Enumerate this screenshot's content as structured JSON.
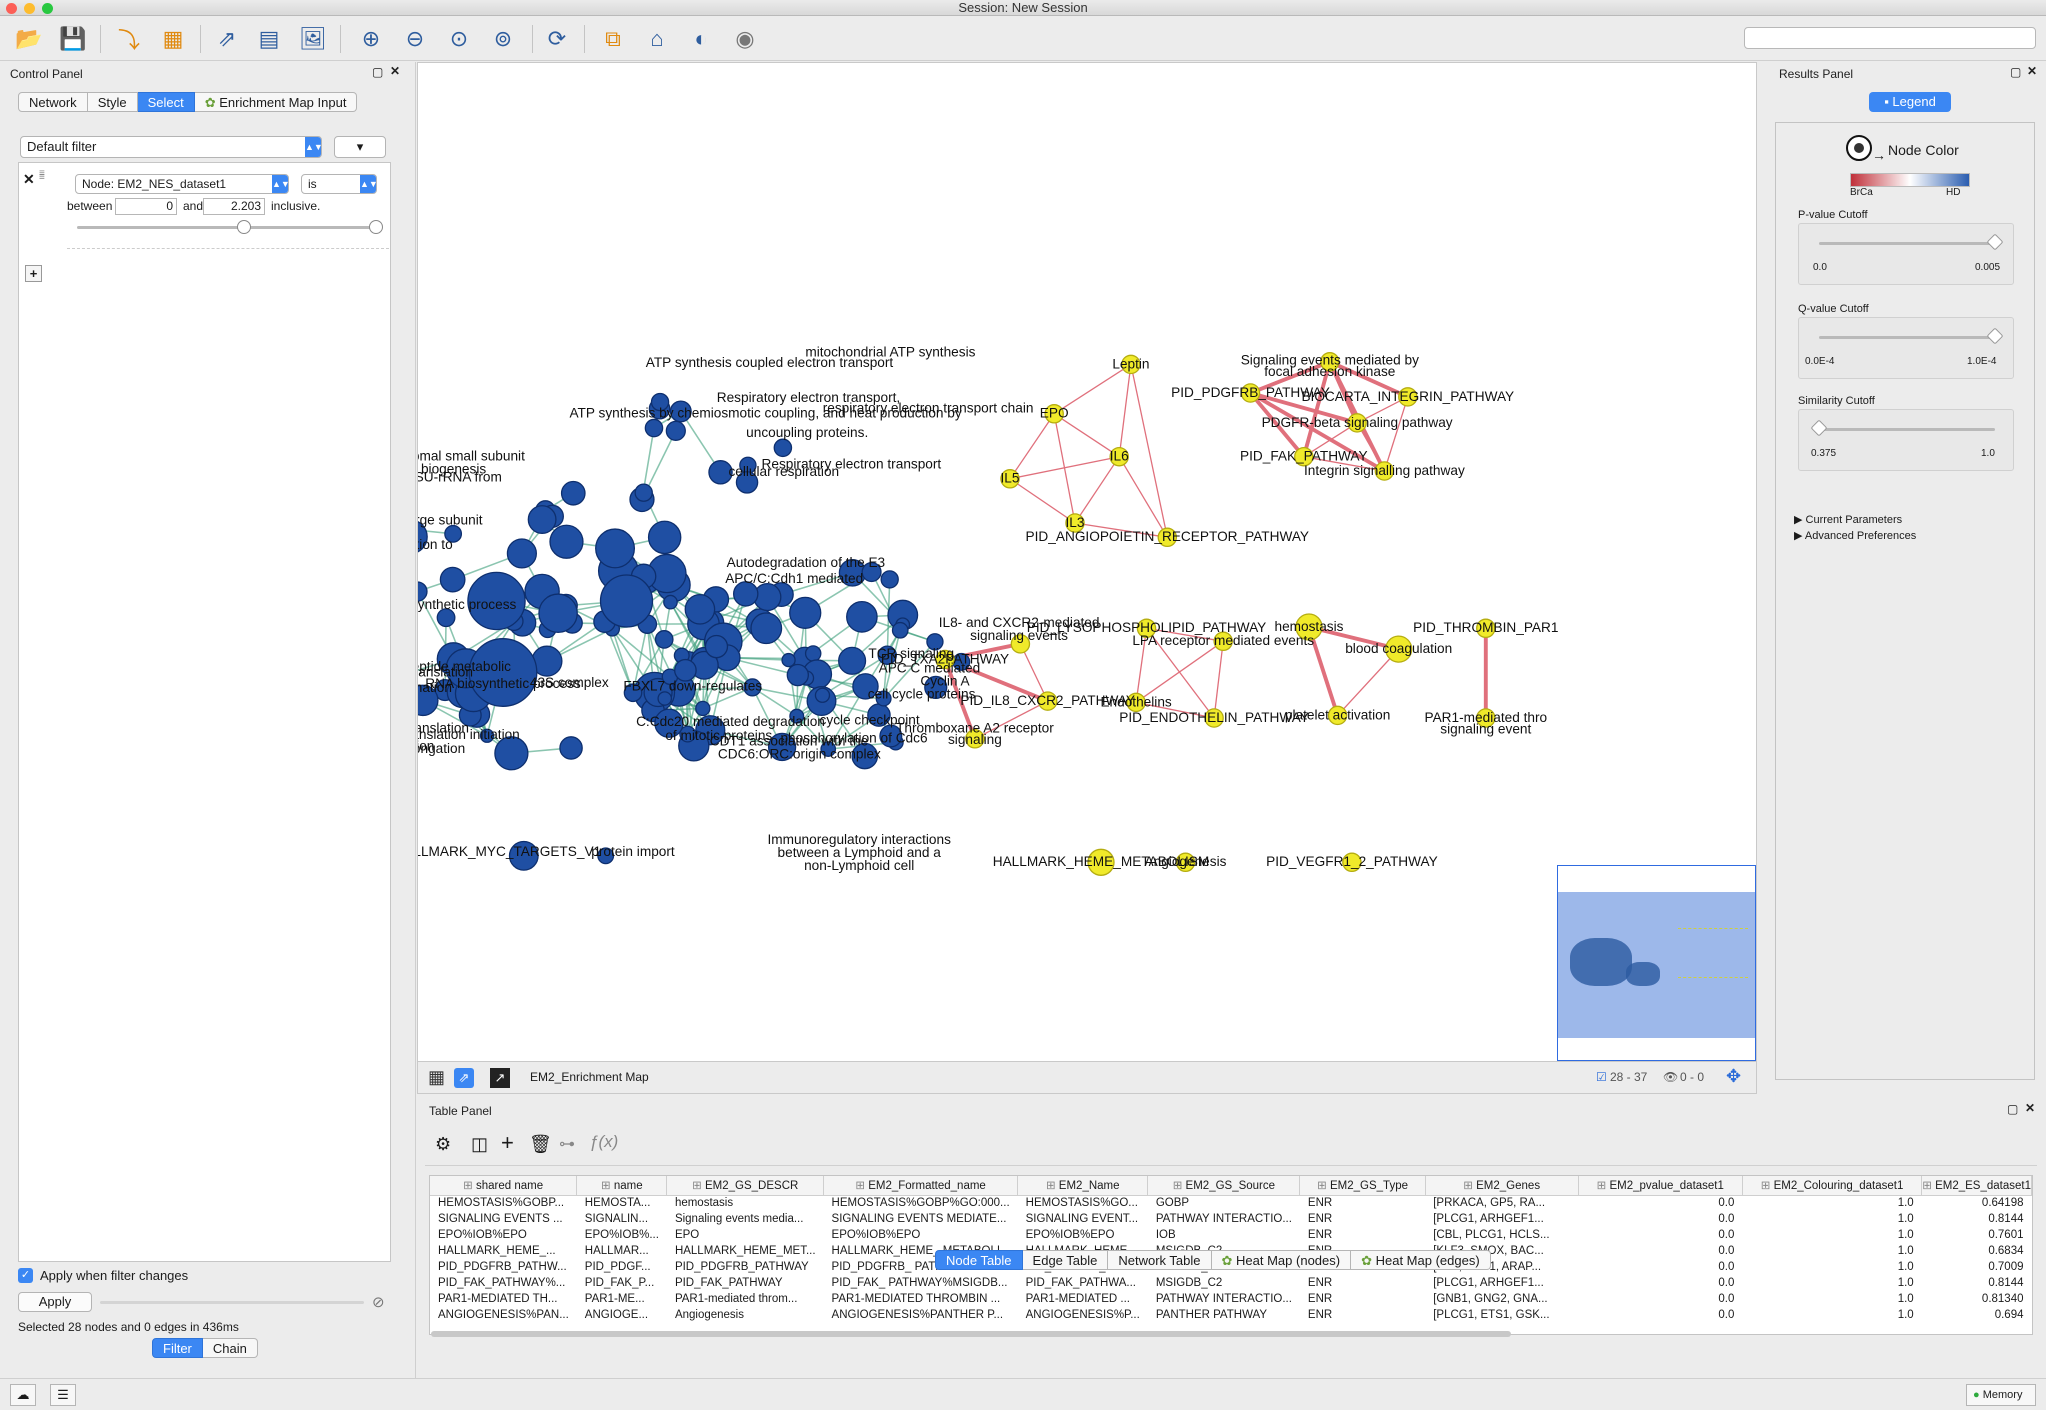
{
  "window": {
    "title": "Session: New Session"
  },
  "toolbar": {
    "search_placeholder": ""
  },
  "control_panel": {
    "title": "Control Panel",
    "tabs": [
      "Network",
      "Style",
      "Select",
      "Enrichment Map Input"
    ],
    "active_tab": "Select",
    "filter_select": "Default filter",
    "node_column": "Node: EM2_NES_dataset1",
    "operator": "is",
    "between_label": "between",
    "min_value": "0",
    "and_label": "and",
    "max_value": "2.203",
    "inclusive_label": "inclusive.",
    "apply_when_changes": "Apply when filter changes",
    "apply_label": "Apply",
    "selected_status": "Selected 28 nodes and 0 edges in 436ms",
    "bottom_tabs": [
      "Filter",
      "Chain"
    ]
  },
  "network": {
    "name": "EM2_Enrichment Map",
    "selection_counts": "28 - 37",
    "hidden_counts": "0 - 0",
    "labels": {
      "l1": "mitochondrial ATP synthesis",
      "l2": "ATP synthesis coupled electron transport",
      "l3": "Respiratory electron transport,",
      "l4": "ATP synthesis by chemiosmotic coupling, and heat production by",
      "l5": "uncoupling proteins.",
      "l6": "respiratory electron transport chain",
      "l7": "Respiratory electron transport",
      "l8": "cellular respiration",
      "l9": "ribosomal small subunit",
      "l10": "biogenesis",
      "l11": "maturation of SSU-rRNA from",
      "l12": "ribosomal large subunit",
      "l13": "protein localization to",
      "l14": "amide biosynthetic process",
      "l15": "Mitochondrial translation",
      "l16": "translational termination",
      "l17": "Mitochondrial translation",
      "l18": "elongation",
      "l19": "translational elongation",
      "l20": "translation initiation",
      "l21": "peptide metabolic",
      "l22": "RNA biosynthetic process",
      "l23": "43S complex",
      "l24": "Autodegradation of the E3",
      "l25": "APC/C:Cdh1 mediated",
      "l26": "FBXL7 down-regulates",
      "l27": "C:Cdc20 mediated degradation",
      "l28": "of mitotic proteins",
      "l29": "CDT1 association with the",
      "l30": "CDC6:ORC:origin complex",
      "l31": "TCR signaling",
      "l32": "APC C mediated",
      "l33": "Cyclin A",
      "l34": "cell cycle proteins",
      "l35": "cycle checkpoint",
      "l36": "phosphorylation of Cdc6",
      "l37": "HALLMARK_MYC_TARGETS_V1",
      "l38": "protein import",
      "l39": "Immunoregulatory interactions",
      "l40": "between a Lymphoid and a",
      "l41": "non-Lymphoid cell",
      "y1": "Leptin",
      "y2": "EPO",
      "y3": "IL6",
      "y4": "IL5",
      "y5": "IL3",
      "y6": "PID_ANGIOPOIETIN_RECEPTOR_PATHWAY",
      "y7": "Signaling events mediated by",
      "y8": "focal adhesion kinase",
      "y9": "PID_PDGFRB_PATHWAY",
      "y10": "BIOCARTA_INTEGRIN_PATHWAY",
      "y11": "PDGFR-beta signaling pathway",
      "y12": "PID_FAK_PATHWAY",
      "y13": "Integrin signalling pathway",
      "y14": "IL8- and CXCR2-mediated",
      "y15": "signaling events",
      "y16": "PID_TXA2PATHWAY",
      "y17": "PID_IL8_CXCR2_PATHWAY",
      "y18": "Thromboxane A2 receptor",
      "y19": "signaling",
      "y20": "PID_LYSOPHOSPHOLIPID_PATHWAY",
      "y21": "LPA receptor mediated events",
      "y22": "Endothelins",
      "y23": "PID_ENDOTHELIN_PATHWAY",
      "y24": "hemostasis",
      "y25": "blood coagulation",
      "y26": "platelet activation",
      "y27": "PID_THROMBIN_PAR1",
      "y28": "PAR1-mediated thro",
      "y29": "signaling event",
      "y30": "HALLMARK_HEME_METABOLISM",
      "y31": "Angiogenesis",
      "y32": "PID_VEGFR1_2_PATHWAY"
    }
  },
  "results_panel": {
    "title": "Results Panel",
    "legend_button": "Legend",
    "node_color": "Node Color",
    "color_low": "BrCa",
    "color_high": "HD",
    "colors": {
      "low": "#c0303a",
      "high": "#2a5db0"
    },
    "pvalue": {
      "label": "P-value Cutoff",
      "min": "0.0",
      "max": "0.005",
      "position": 1.0
    },
    "qvalue": {
      "label": "Q-value Cutoff",
      "min": "0.0E-4",
      "max": "1.0E-4",
      "position": 1.0
    },
    "similarity": {
      "label": "Similarity Cutoff",
      "min": "0.375",
      "max": "1.0",
      "position": 0.0
    },
    "current_params": "Current Parameters",
    "advanced_prefs": "Advanced Preferences"
  },
  "table_panel": {
    "title": "Table Panel",
    "columns": [
      "shared name",
      "name",
      "EM2_GS_DESCR",
      "EM2_Formatted_name",
      "EM2_Name",
      "EM2_GS_Source",
      "EM2_GS_Type",
      "EM2_Genes",
      "EM2_pvalue_dataset1",
      "EM2_Colouring_dataset1",
      "EM2_ES_dataset1"
    ],
    "rows": [
      [
        "HEMOSTASIS%GOBP...",
        "HEMOSTA...",
        "hemostasis",
        "HEMOSTASIS%GOBP%GO:000...",
        "HEMOSTASIS%GO...",
        "GOBP",
        "ENR",
        "[PRKACA, GP5, RA...",
        "0.0",
        "1.0",
        "0.64198"
      ],
      [
        "SIGNALING EVENTS ...",
        "SIGNALIN...",
        "Signaling events media...",
        "SIGNALING EVENTS  MEDIATE...",
        "SIGNALING EVENT...",
        "PATHWAY INTERACTIO...",
        "ENR",
        "[PLCG1, ARHGEF1...",
        "0.0",
        "1.0",
        "0.8144"
      ],
      [
        "EPO%IOB%EPO",
        "EPO%IOB%...",
        "EPO",
        "EPO%IOB%EPO",
        "EPO%IOB%EPO",
        "IOB",
        "ENR",
        "[CBL, PLCG1, HCLS...",
        "0.0",
        "1.0",
        "0.7601"
      ],
      [
        "HALLMARK_HEME_...",
        "HALLMAR...",
        "HALLMARK_HEME_MET...",
        "HALLMARK_HEME_ METABOLI...",
        "HALLMARK_HEME...",
        "MSIGDB_C2",
        "ENR",
        "[KLF3, SMOX, BAC...",
        "0.0",
        "1.0",
        "0.6834"
      ],
      [
        "PID_PDGFRB_PATHW...",
        "PID_PDGF...",
        "PID_PDGFRB_PATHWAY",
        "PID_PDGFRB_ PATHWAY%MSI...",
        "PID_PDGFRB_PAT...",
        "MSIGDB_C2",
        "ENR",
        "[CBL, RAC1, ARAP...",
        "0.0",
        "1.0",
        "0.7009"
      ],
      [
        "PID_FAK_PATHWAY%...",
        "PID_FAK_P...",
        "PID_FAK_PATHWAY",
        "PID_FAK_ PATHWAY%MSIGDB...",
        "PID_FAK_PATHWA...",
        "MSIGDB_C2",
        "ENR",
        "[PLCG1, ARHGEF1...",
        "0.0",
        "1.0",
        "0.8144"
      ],
      [
        "PAR1-MEDIATED TH...",
        "PAR1-ME...",
        "PAR1-mediated throm...",
        "PAR1-MEDIATED  THROMBIN ...",
        "PAR1-MEDIATED ...",
        "PATHWAY INTERACTIO...",
        "ENR",
        "[GNB1, GNG2, GNA...",
        "0.0",
        "1.0",
        "0.81340"
      ],
      [
        "ANGIOGENESIS%PAN...",
        "ANGIOGE...",
        "Angiogenesis",
        "ANGIOGENESIS%PANTHER P...",
        "ANGIOGENESIS%P...",
        "PANTHER PATHWAY",
        "ENR",
        "[PLCG1, ETS1, GSK...",
        "0.0",
        "1.0",
        "0.694"
      ]
    ],
    "bottom_tabs": [
      "Node Table",
      "Edge Table",
      "Network Table",
      "Heat Map (nodes)",
      "Heat Map (edges)"
    ],
    "active_tab": "Node Table"
  },
  "status": {
    "memory": "Memory"
  }
}
